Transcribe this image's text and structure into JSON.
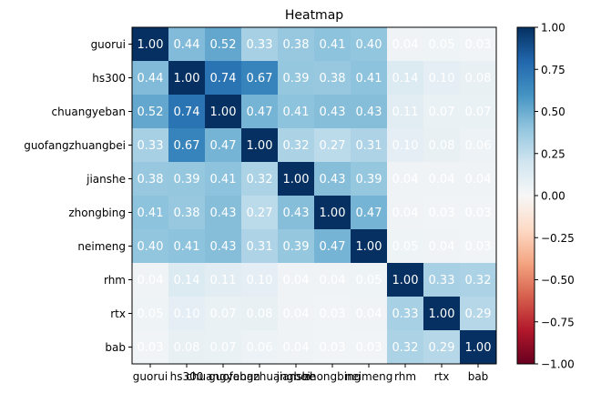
{
  "chart_data": {
    "type": "heatmap",
    "title": "Heatmap",
    "xlabel": "",
    "ylabel": "",
    "x_categories": [
      "guorui",
      "hs300",
      "chuangyeban",
      "guofangzhuangbei",
      "jianshe",
      "zhongbing",
      "neimeng",
      "rhm",
      "rtx",
      "bab"
    ],
    "y_categories": [
      "guorui",
      "hs300",
      "chuangyeban",
      "guofangzhuangbei",
      "jianshe",
      "zhongbing",
      "neimeng",
      "rhm",
      "rtx",
      "bab"
    ],
    "values": [
      [
        1.0,
        0.44,
        0.52,
        0.33,
        0.38,
        0.41,
        0.4,
        0.04,
        0.05,
        0.03
      ],
      [
        0.44,
        1.0,
        0.74,
        0.67,
        0.39,
        0.38,
        0.41,
        0.14,
        0.1,
        0.08
      ],
      [
        0.52,
        0.74,
        1.0,
        0.47,
        0.41,
        0.43,
        0.43,
        0.11,
        0.07,
        0.07
      ],
      [
        0.33,
        0.67,
        0.47,
        1.0,
        0.32,
        0.27,
        0.31,
        0.1,
        0.08,
        0.06
      ],
      [
        0.38,
        0.39,
        0.41,
        0.32,
        1.0,
        0.43,
        0.39,
        0.04,
        0.04,
        0.04
      ],
      [
        0.41,
        0.38,
        0.43,
        0.27,
        0.43,
        1.0,
        0.47,
        0.04,
        0.03,
        0.03
      ],
      [
        0.4,
        0.41,
        0.43,
        0.31,
        0.39,
        0.47,
        1.0,
        0.05,
        0.04,
        0.03
      ],
      [
        0.04,
        0.14,
        0.11,
        0.1,
        0.04,
        0.04,
        0.05,
        1.0,
        0.33,
        0.32
      ],
      [
        0.05,
        0.1,
        0.07,
        0.08,
        0.04,
        0.03,
        0.04,
        0.33,
        1.0,
        0.29
      ],
      [
        0.03,
        0.08,
        0.07,
        0.06,
        0.04,
        0.03,
        0.03,
        0.32,
        0.29,
        1.0
      ]
    ],
    "value_format": "0.00",
    "colormap": "RdBu",
    "vmin": -1.0,
    "vmax": 1.0,
    "colorbar_ticks": [
      1.0,
      0.75,
      0.5,
      0.25,
      0.0,
      -0.25,
      -0.5,
      -0.75,
      -1.0
    ],
    "colorbar_tick_labels": [
      "1.00",
      "0.75",
      "0.50",
      "0.25",
      "0.00",
      "−0.25",
      "−0.50",
      "−0.75",
      "−1.00"
    ],
    "grid": false,
    "legend": "colorbar-right"
  }
}
